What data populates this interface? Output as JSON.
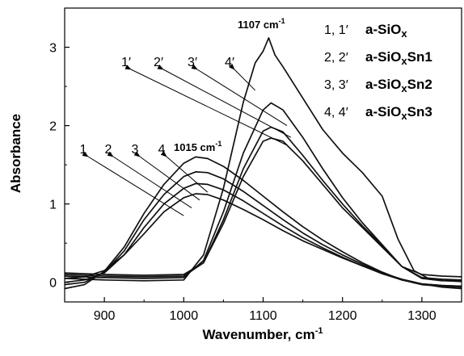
{
  "chart_data": {
    "type": "line",
    "title": "",
    "xlabel": "Wavenumber, cm",
    "xlabel_sup": "-1",
    "ylabel": "Absorbance",
    "xlim": [
      850,
      1350
    ],
    "ylim": [
      -0.25,
      3.5
    ],
    "x_ticks": [
      900,
      1000,
      1100,
      1200,
      1300
    ],
    "y_ticks": [
      0,
      1,
      2,
      3
    ],
    "grid": false,
    "annotations": [
      {
        "text": "1107 cm",
        "sup": "-1",
        "x": 1107,
        "y": 3.15
      },
      {
        "text": "1015 cm",
        "sup": "-1",
        "x": 1015,
        "y": 1.6
      }
    ],
    "curve_labels": [
      {
        "text": "1",
        "target": [
          1000,
          0.85
        ]
      },
      {
        "text": "2",
        "target": [
          1010,
          0.95
        ]
      },
      {
        "text": "3",
        "target": [
          1020,
          1.05
        ]
      },
      {
        "text": "4",
        "target": [
          1030,
          1.15
        ]
      },
      {
        "text": "1′",
        "target": [
          1130,
          1.75
        ]
      },
      {
        "text": "2′",
        "target": [
          1135,
          1.85
        ]
      },
      {
        "text": "3′",
        "target": [
          1130,
          2.0
        ]
      },
      {
        "text": "4′",
        "target": [
          1090,
          2.45
        ]
      }
    ],
    "legend": {
      "placement": "top-right",
      "entries": [
        {
          "num": "1, 1′",
          "name": "a-SiO",
          "sub": "x",
          "suffix": ""
        },
        {
          "num": "2, 2′",
          "name": "a-SiO",
          "sub": "x",
          "suffix": "Sn1"
        },
        {
          "num": "3, 3′",
          "name": "a-SiO",
          "sub": "x",
          "suffix": "Sn2"
        },
        {
          "num": "4, 4′",
          "name": "a-SiO",
          "sub": "x",
          "suffix": "Sn3"
        }
      ]
    },
    "series": [
      {
        "x": [
          850,
          875,
          900,
          925,
          950,
          975,
          1000,
          1015,
          1030,
          1050,
          1075,
          1100,
          1125,
          1150,
          1175,
          1200,
          1225,
          1250,
          1275,
          1300,
          1325,
          1350
        ],
        "values": [
          0.05,
          0.07,
          0.15,
          0.35,
          0.62,
          0.9,
          1.08,
          1.13,
          1.12,
          1.05,
          0.93,
          0.8,
          0.66,
          0.53,
          0.42,
          0.31,
          0.21,
          0.12,
          0.04,
          -0.02,
          -0.06,
          -0.08
        ]
      },
      {
        "x": [
          850,
          875,
          900,
          925,
          950,
          975,
          1000,
          1015,
          1030,
          1050,
          1075,
          1100,
          1125,
          1150,
          1175,
          1200,
          1225,
          1250,
          1275,
          1300,
          1325,
          1350
        ],
        "values": [
          0.0,
          0.03,
          0.12,
          0.35,
          0.7,
          1.0,
          1.2,
          1.26,
          1.25,
          1.18,
          1.04,
          0.88,
          0.72,
          0.57,
          0.44,
          0.32,
          0.21,
          0.11,
          0.03,
          -0.03,
          -0.05,
          -0.06
        ]
      },
      {
        "x": [
          850,
          875,
          900,
          925,
          950,
          975,
          1000,
          1015,
          1030,
          1050,
          1075,
          1100,
          1125,
          1150,
          1175,
          1200,
          1225,
          1250,
          1275,
          1300,
          1325,
          1350
        ],
        "values": [
          -0.03,
          0.0,
          0.13,
          0.4,
          0.8,
          1.12,
          1.35,
          1.41,
          1.4,
          1.32,
          1.16,
          0.98,
          0.8,
          0.63,
          0.48,
          0.35,
          0.23,
          0.12,
          0.03,
          -0.02,
          -0.04,
          -0.05
        ]
      },
      {
        "x": [
          850,
          875,
          900,
          925,
          950,
          975,
          1000,
          1015,
          1030,
          1050,
          1075,
          1100,
          1125,
          1150,
          1175,
          1200,
          1225,
          1250,
          1275,
          1300,
          1325,
          1350
        ],
        "values": [
          -0.08,
          -0.03,
          0.14,
          0.45,
          0.88,
          1.25,
          1.52,
          1.6,
          1.58,
          1.48,
          1.3,
          1.1,
          0.9,
          0.71,
          0.54,
          0.39,
          0.25,
          0.13,
          0.03,
          -0.02,
          -0.04,
          -0.05
        ]
      },
      {
        "x": [
          850,
          900,
          950,
          1000,
          1025,
          1050,
          1075,
          1100,
          1110,
          1125,
          1150,
          1175,
          1200,
          1225,
          1250,
          1275,
          1300,
          1325,
          1350
        ],
        "values": [
          0.12,
          0.1,
          0.09,
          0.1,
          0.25,
          0.75,
          1.35,
          1.8,
          1.84,
          1.8,
          1.55,
          1.25,
          0.95,
          0.7,
          0.45,
          0.2,
          0.1,
          0.08,
          0.07
        ]
      },
      {
        "x": [
          850,
          900,
          950,
          1000,
          1025,
          1050,
          1075,
          1100,
          1110,
          1125,
          1150,
          1175,
          1200,
          1225,
          1250,
          1275,
          1300,
          1325,
          1350
        ],
        "values": [
          0.1,
          0.08,
          0.07,
          0.08,
          0.25,
          0.8,
          1.45,
          1.93,
          1.98,
          1.92,
          1.62,
          1.3,
          1.0,
          0.72,
          0.47,
          0.2,
          0.06,
          0.04,
          0.03
        ]
      },
      {
        "x": [
          850,
          900,
          950,
          1000,
          1025,
          1050,
          1075,
          1100,
          1110,
          1125,
          1150,
          1175,
          1200,
          1225,
          1250,
          1275,
          1300,
          1325,
          1350
        ],
        "values": [
          0.08,
          0.06,
          0.05,
          0.06,
          0.28,
          0.9,
          1.65,
          2.2,
          2.29,
          2.2,
          1.85,
          1.45,
          1.08,
          0.76,
          0.48,
          0.2,
          0.05,
          0.02,
          0.02
        ]
      },
      {
        "x": [
          850,
          900,
          950,
          1000,
          1025,
          1050,
          1075,
          1090,
          1100,
          1107,
          1115,
          1125,
          1150,
          1175,
          1200,
          1225,
          1250,
          1270,
          1290,
          1310,
          1330,
          1350
        ],
        "values": [
          0.05,
          0.03,
          0.02,
          0.03,
          0.35,
          1.2,
          2.3,
          2.8,
          2.95,
          3.12,
          2.9,
          2.75,
          2.35,
          1.95,
          1.65,
          1.4,
          1.1,
          0.55,
          0.15,
          0.04,
          0.02,
          0.01
        ]
      }
    ]
  }
}
